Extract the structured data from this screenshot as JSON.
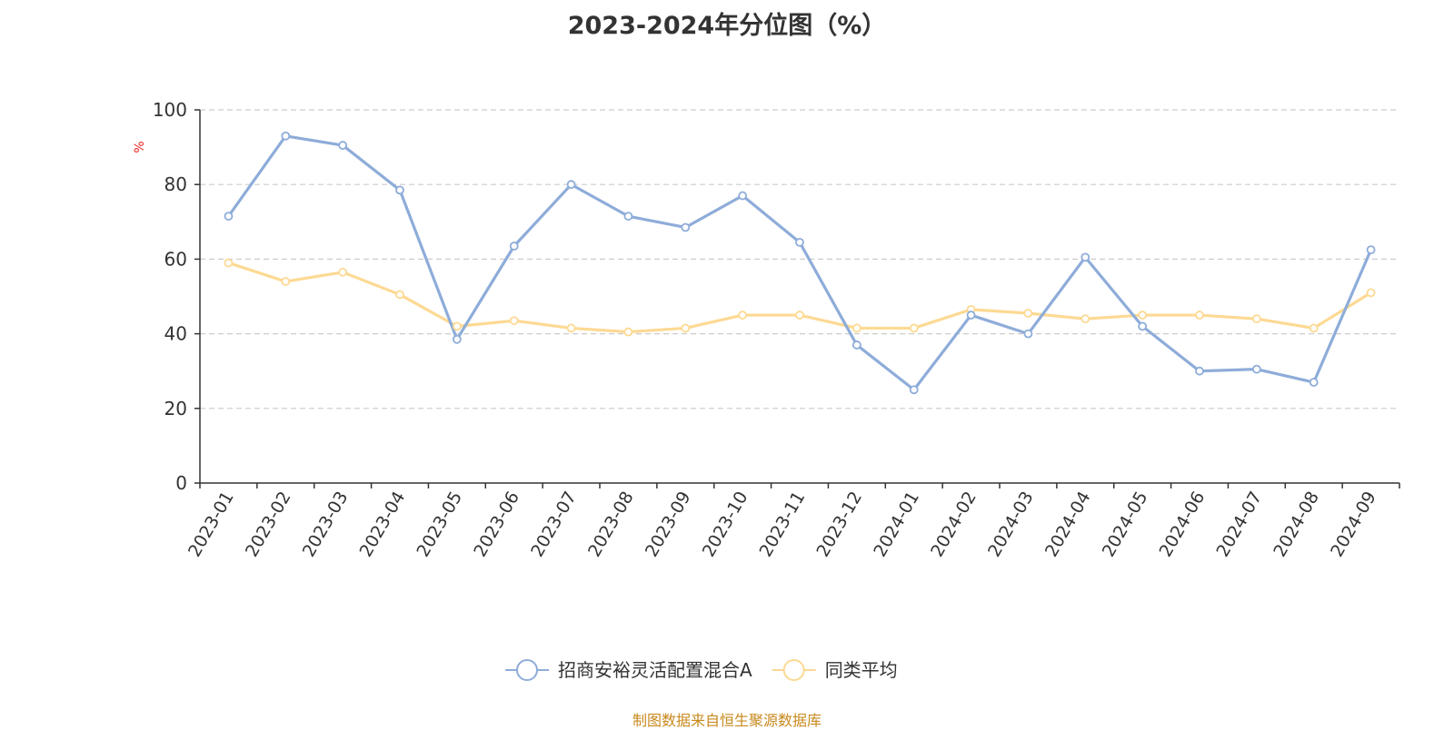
{
  "source": "制图数据来自恒生聚源数据库",
  "chart_data": {
    "type": "line",
    "title": "2023-2024年分位图（%）",
    "ylabel": "%",
    "ylim": [
      0,
      100
    ],
    "yticks": [
      0,
      20,
      40,
      60,
      80,
      100
    ],
    "grid": true,
    "legend_position": "bottom-center",
    "categories": [
      "2023-01",
      "2023-02",
      "2023-03",
      "2023-04",
      "2023-05",
      "2023-06",
      "2023-07",
      "2023-08",
      "2023-09",
      "2023-10",
      "2023-11",
      "2023-12",
      "2024-01",
      "2024-02",
      "2024-03",
      "2024-04",
      "2024-05",
      "2024-06",
      "2024-07",
      "2024-08",
      "2024-09"
    ],
    "series": [
      {
        "name": "招商安裕灵活配置混合A",
        "color": "#8eacd9",
        "values": [
          71.5,
          93,
          90.5,
          78.5,
          38.5,
          63.5,
          80,
          71.5,
          68.5,
          77,
          64.5,
          37,
          25,
          45,
          40,
          60.5,
          42,
          30,
          30.5,
          27,
          62.5
        ]
      },
      {
        "name": "同类平均",
        "color": "#fdd993",
        "values": [
          59,
          54,
          56.5,
          50.5,
          42,
          43.5,
          41.5,
          40.5,
          41.5,
          45,
          45,
          41.5,
          41.5,
          46.5,
          45.5,
          44,
          45,
          45,
          44,
          41.5,
          51
        ]
      }
    ]
  }
}
